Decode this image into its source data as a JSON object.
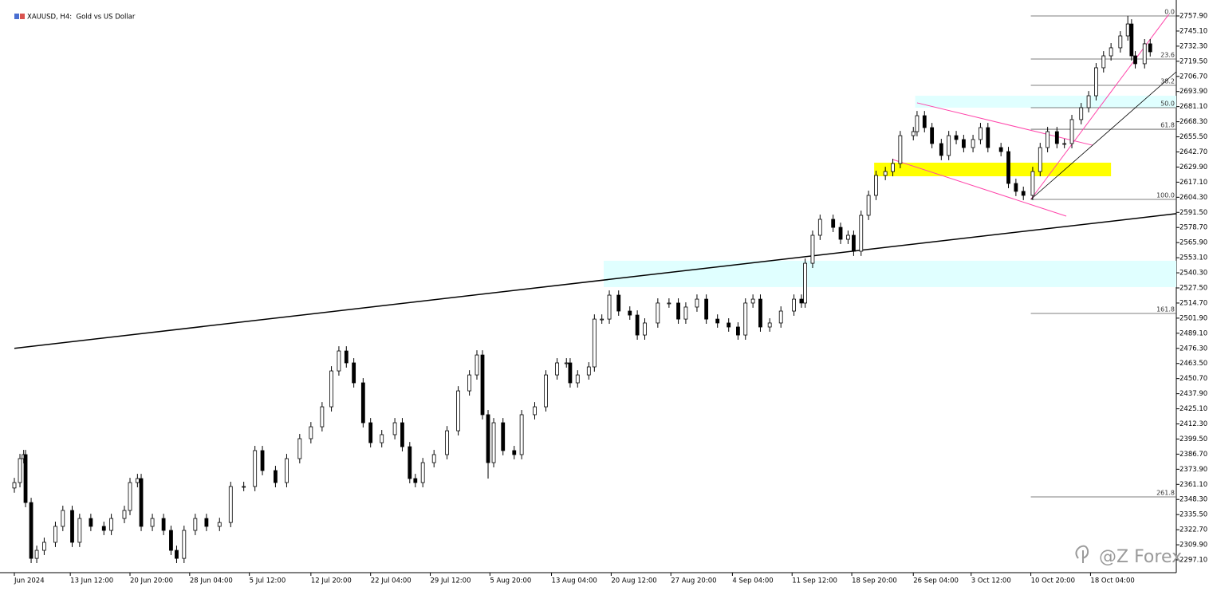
{
  "chart_data": {
    "type": "candlestick",
    "title": "XAUUSD, H4:  Gold vs US Dollar",
    "watermark": "@Z Forex",
    "up_color": "#ffffff",
    "down_color": "#000000",
    "outline_color": "#000000",
    "grid": false,
    "xlim": [
      0,
      623
    ],
    "ylim": [
      2286.3,
      2763.3
    ],
    "xticks": [
      {
        "value": 0,
        "label": "Jun 2024"
      },
      {
        "value": 30,
        "label": "13 Jun 12:00"
      },
      {
        "value": 62,
        "label": "20 Jun 20:00"
      },
      {
        "value": 94,
        "label": "28 Jun 04:00"
      },
      {
        "value": 126,
        "label": "5 Jul 12:00"
      },
      {
        "value": 159,
        "label": "12 Jul 20:00"
      },
      {
        "value": 191,
        "label": "22 Jul 04:00"
      },
      {
        "value": 223,
        "label": "29 Jul 12:00"
      },
      {
        "value": 255,
        "label": "5 Aug 20:00"
      },
      {
        "value": 288,
        "label": "13 Aug 04:00"
      },
      {
        "value": 320,
        "label": "20 Aug 12:00"
      },
      {
        "value": 352,
        "label": "27 Aug 20:00"
      },
      {
        "value": 385,
        "label": "4 Sep 04:00"
      },
      {
        "value": 417,
        "label": "11 Sep 12:00"
      },
      {
        "value": 449,
        "label": "18 Sep 20:00"
      },
      {
        "value": 482,
        "label": "26 Sep 04:00"
      },
      {
        "value": 513,
        "label": "3 Oct 12:00"
      },
      {
        "value": 545,
        "label": "10 Oct 20:00"
      },
      {
        "value": 577,
        "label": "18 Oct 04:00"
      }
    ],
    "yticks": [
      {
        "value": 2757.9,
        "label": "2757.90"
      },
      {
        "value": 2745.1,
        "label": "2745.10"
      },
      {
        "value": 2732.3,
        "label": "2732.30"
      },
      {
        "value": 2719.5,
        "label": "2719.50"
      },
      {
        "value": 2706.7,
        "label": "2706.70"
      },
      {
        "value": 2693.9,
        "label": "2693.90"
      },
      {
        "value": 2681.1,
        "label": "2681.10"
      },
      {
        "value": 2668.3,
        "label": "2668.30"
      },
      {
        "value": 2655.5,
        "label": "2655.50"
      },
      {
        "value": 2642.7,
        "label": "2642.70"
      },
      {
        "value": 2629.9,
        "label": "2629.90"
      },
      {
        "value": 2617.1,
        "label": "2617.10"
      },
      {
        "value": 2604.3,
        "label": "2604.30"
      },
      {
        "value": 2591.5,
        "label": "2591.50"
      },
      {
        "value": 2578.7,
        "label": "2578.70"
      },
      {
        "value": 2565.9,
        "label": "2565.90"
      },
      {
        "value": 2553.1,
        "label": "2553.10"
      },
      {
        "value": 2540.3,
        "label": "2540.30"
      },
      {
        "value": 2527.5,
        "label": "2527.50"
      },
      {
        "value": 2514.7,
        "label": "2514.70"
      },
      {
        "value": 2501.9,
        "label": "2501.90"
      },
      {
        "value": 2489.1,
        "label": "2489.10"
      },
      {
        "value": 2476.3,
        "label": "2476.30"
      },
      {
        "value": 2463.5,
        "label": "2463.50"
      },
      {
        "value": 2450.7,
        "label": "2450.70"
      },
      {
        "value": 2437.9,
        "label": "2437.90"
      },
      {
        "value": 2425.1,
        "label": "2425.10"
      },
      {
        "value": 2412.3,
        "label": "2412.30"
      },
      {
        "value": 2399.5,
        "label": "2399.50"
      },
      {
        "value": 2386.7,
        "label": "2386.70"
      },
      {
        "value": 2373.9,
        "label": "2373.90"
      },
      {
        "value": 2361.1,
        "label": "2361.10"
      },
      {
        "value": 2348.3,
        "label": "2348.30"
      },
      {
        "value": 2335.5,
        "label": "2335.50"
      },
      {
        "value": 2322.7,
        "label": "2322.70"
      },
      {
        "value": 2309.9,
        "label": "2309.90"
      },
      {
        "value": 2297.1,
        "label": "2297.10"
      }
    ],
    "x": [
      0,
      3,
      5,
      6,
      9,
      12,
      16,
      22,
      26,
      31,
      35,
      41,
      48,
      52,
      59,
      62,
      66,
      68,
      74,
      80,
      84,
      87,
      91,
      97,
      103,
      110,
      116,
      123,
      129,
      133,
      140,
      146,
      153,
      159,
      165,
      170,
      174,
      178,
      182,
      187,
      191,
      197,
      204,
      208,
      212,
      215,
      219,
      225,
      232,
      238,
      244,
      248,
      251,
      254,
      257,
      262,
      268,
      272,
      279,
      285,
      291,
      296,
      298,
      302,
      308,
      311,
      315,
      319,
      324,
      330,
      334,
      338,
      345,
      351,
      356,
      360,
      366,
      371,
      377,
      383,
      388,
      392,
      396,
      400,
      405,
      411,
      418,
      422,
      424,
      428,
      432,
      439,
      443,
      447,
      450,
      454,
      458,
      462,
      467,
      471,
      475,
      482,
      484,
      488,
      492,
      497,
      501,
      505,
      509,
      514,
      518,
      522,
      529,
      533,
      537,
      541,
      546,
      550,
      554,
      559,
      563,
      567,
      572,
      576,
      580,
      584,
      588,
      593,
      597,
      599,
      601,
      606,
      609
    ],
    "open": [
      2358.0,
      2362.6,
      2382.9,
      2386.3,
      2345.7,
      2298.4,
      2305.2,
      2312.0,
      2325.5,
      2339.0,
      2312.0,
      2332.2,
      2325.5,
      2322.1,
      2332.2,
      2339.0,
      2362.6,
      2366.0,
      2325.5,
      2332.2,
      2322.1,
      2305.2,
      2298.4,
      2322.1,
      2332.2,
      2325.5,
      2328.8,
      2359.3,
      2359.3,
      2389.7,
      2372.8,
      2362.6,
      2382.9,
      2399.8,
      2409.9,
      2426.8,
      2457.2,
      2474.1,
      2464.0,
      2447.1,
      2413.3,
      2396.4,
      2403.2,
      2413.3,
      2393.0,
      2366.0,
      2362.6,
      2379.5,
      2386.3,
      2406.5,
      2440.3,
      2453.8,
      2470.7,
      2420.1,
      2379.5,
      2413.3,
      2389.7,
      2386.3,
      2420.1,
      2426.8,
      2453.8,
      2464.0,
      2464.0,
      2447.1,
      2453.8,
      2460.6,
      2501.1,
      2501.1,
      2521.4,
      2507.9,
      2504.5,
      2487.6,
      2497.8,
      2514.7,
      2514.7,
      2501.1,
      2511.3,
      2518.0,
      2501.1,
      2497.8,
      2494.4,
      2487.6,
      2514.7,
      2518.0,
      2494.4,
      2497.8,
      2507.9,
      2518.0,
      2514.7,
      2548.4,
      2572.1,
      2585.6,
      2578.8,
      2568.7,
      2572.1,
      2558.6,
      2589.0,
      2605.9,
      2622.8,
      2626.1,
      2632.9,
      2656.5,
      2659.9,
      2673.4,
      2663.3,
      2649.8,
      2639.7,
      2656.5,
      2653.2,
      2646.4,
      2653.2,
      2663.3,
      2646.4,
      2643.0,
      2616.0,
      2609.3,
      2605.9,
      2626.1,
      2646.4,
      2659.9,
      2649.8,
      2649.8,
      2670.1,
      2680.2,
      2690.3,
      2714.0,
      2724.1,
      2730.9,
      2741.0,
      2751.1,
      2724.1,
      2717.4,
      2734.3
    ],
    "high": [
      2366.6,
      2386.9,
      2390.3,
      2390.3,
      2349.7,
      2309.2,
      2316.0,
      2329.5,
      2343.0,
      2343.0,
      2336.2,
      2336.2,
      2329.5,
      2336.2,
      2343.0,
      2366.6,
      2370.0,
      2370.0,
      2336.2,
      2336.2,
      2326.1,
      2309.2,
      2326.1,
      2336.2,
      2336.2,
      2332.8,
      2363.3,
      2363.3,
      2393.7,
      2393.7,
      2376.8,
      2386.9,
      2403.8,
      2413.9,
      2430.8,
      2461.2,
      2478.1,
      2478.1,
      2468.0,
      2451.1,
      2417.3,
      2407.2,
      2417.3,
      2417.3,
      2397.0,
      2370.0,
      2383.5,
      2390.3,
      2410.5,
      2444.3,
      2457.8,
      2474.7,
      2474.7,
      2424.1,
      2417.3,
      2417.3,
      2393.7,
      2424.1,
      2430.8,
      2457.8,
      2468.0,
      2468.0,
      2468.0,
      2457.8,
      2464.6,
      2505.1,
      2505.1,
      2525.4,
      2525.4,
      2511.9,
      2508.5,
      2501.8,
      2518.7,
      2518.7,
      2518.7,
      2515.3,
      2522.0,
      2522.0,
      2505.1,
      2501.8,
      2498.4,
      2518.7,
      2522.0,
      2522.0,
      2501.8,
      2511.9,
      2522.0,
      2522.0,
      2552.4,
      2576.1,
      2589.6,
      2589.6,
      2582.8,
      2576.1,
      2576.1,
      2593.0,
      2609.9,
      2626.8,
      2630.1,
      2636.9,
      2660.5,
      2663.9,
      2677.4,
      2677.4,
      2667.3,
      2653.8,
      2660.5,
      2660.5,
      2657.2,
      2657.2,
      2667.3,
      2667.3,
      2650.4,
      2647.0,
      2620.0,
      2613.3,
      2630.1,
      2650.4,
      2663.9,
      2663.9,
      2653.8,
      2674.1,
      2684.2,
      2694.3,
      2718.0,
      2728.1,
      2734.9,
      2745.0,
      2758.0,
      2755.1,
      2728.1,
      2738.3,
      2738.3
    ],
    "low": [
      2354.0,
      2358.6,
      2378.9,
      2341.7,
      2294.4,
      2294.4,
      2301.2,
      2308.0,
      2321.5,
      2308.0,
      2308.0,
      2321.5,
      2318.1,
      2318.1,
      2328.2,
      2335.0,
      2358.6,
      2321.5,
      2321.5,
      2318.1,
      2301.2,
      2294.4,
      2294.4,
      2318.1,
      2321.5,
      2321.5,
      2324.8,
      2355.3,
      2355.3,
      2368.8,
      2358.6,
      2358.6,
      2378.9,
      2395.8,
      2405.9,
      2422.8,
      2453.2,
      2460.0,
      2443.1,
      2409.3,
      2392.4,
      2392.4,
      2399.2,
      2389.0,
      2362.0,
      2358.6,
      2358.6,
      2375.5,
      2382.3,
      2402.5,
      2436.3,
      2449.8,
      2416.1,
      2366.0,
      2375.5,
      2385.7,
      2382.3,
      2382.3,
      2416.1,
      2422.8,
      2449.8,
      2460.0,
      2443.1,
      2443.1,
      2449.8,
      2456.6,
      2497.1,
      2497.1,
      2503.9,
      2500.5,
      2483.6,
      2483.6,
      2493.8,
      2510.7,
      2497.1,
      2497.1,
      2507.3,
      2497.1,
      2493.8,
      2490.4,
      2483.6,
      2483.6,
      2510.7,
      2490.4,
      2490.4,
      2493.8,
      2503.9,
      2510.7,
      2510.7,
      2544.4,
      2568.1,
      2574.8,
      2564.7,
      2564.7,
      2554.6,
      2554.6,
      2585.0,
      2601.9,
      2618.8,
      2622.1,
      2628.9,
      2652.5,
      2655.9,
      2659.3,
      2645.8,
      2635.7,
      2635.7,
      2649.2,
      2642.4,
      2642.4,
      2649.2,
      2642.4,
      2639.0,
      2612.0,
      2605.3,
      2601.9,
      2601.9,
      2622.1,
      2642.4,
      2645.8,
      2645.8,
      2645.8,
      2666.1,
      2676.2,
      2686.3,
      2710.0,
      2720.1,
      2726.9,
      2737.0,
      2720.1,
      2713.4,
      2713.4,
      2723.5
    ],
    "close": [
      2362.6,
      2382.9,
      2386.3,
      2345.7,
      2298.4,
      2305.2,
      2312.0,
      2325.5,
      2339.0,
      2312.0,
      2332.2,
      2325.5,
      2322.1,
      2332.2,
      2339.0,
      2362.6,
      2366.0,
      2325.5,
      2332.2,
      2322.1,
      2305.2,
      2298.4,
      2322.1,
      2332.2,
      2325.5,
      2328.8,
      2359.3,
      2359.3,
      2389.7,
      2372.8,
      2362.6,
      2382.9,
      2399.8,
      2409.9,
      2426.8,
      2457.2,
      2474.1,
      2464.0,
      2447.1,
      2413.3,
      2396.4,
      2403.2,
      2413.3,
      2393.0,
      2366.0,
      2362.6,
      2379.5,
      2386.3,
      2406.5,
      2440.3,
      2453.8,
      2470.7,
      2420.1,
      2379.5,
      2413.3,
      2389.7,
      2386.3,
      2420.1,
      2426.8,
      2453.8,
      2464.0,
      2464.0,
      2447.1,
      2453.8,
      2460.6,
      2501.1,
      2501.1,
      2521.4,
      2507.9,
      2504.5,
      2487.6,
      2497.8,
      2514.7,
      2514.7,
      2501.1,
      2511.3,
      2518.0,
      2501.1,
      2497.8,
      2494.4,
      2487.6,
      2514.7,
      2518.0,
      2494.4,
      2497.8,
      2507.9,
      2518.0,
      2514.7,
      2548.4,
      2572.1,
      2585.6,
      2578.8,
      2568.7,
      2572.1,
      2558.6,
      2589.0,
      2605.9,
      2622.8,
      2626.1,
      2632.9,
      2656.5,
      2659.9,
      2673.4,
      2663.3,
      2649.8,
      2639.7,
      2656.5,
      2653.2,
      2646.4,
      2653.2,
      2663.3,
      2646.4,
      2643.0,
      2616.0,
      2609.3,
      2605.9,
      2626.1,
      2646.4,
      2659.9,
      2649.8,
      2649.8,
      2670.1,
      2680.2,
      2690.3,
      2714.0,
      2724.1,
      2730.9,
      2741.0,
      2751.1,
      2724.1,
      2717.4,
      2734.3,
      2727.5
    ],
    "zones": [
      {
        "x": [
          483,
          623
        ],
        "y": [
          2680.2,
          2690.3
        ],
        "color": "#e0ffff"
      },
      {
        "x": [
          316,
          623
        ],
        "y": [
          2528.2,
          2550.5
        ],
        "color": "#e0ffff"
      },
      {
        "x": [
          461,
          588
        ],
        "y": [
          2622.1,
          2633.6
        ],
        "color": "#ffff00"
      }
    ],
    "lines": [
      {
        "x": [
          0,
          623
        ],
        "y": [
          2476.3,
          2590.4
        ],
        "color": "#000000",
        "width": 1.5
      },
      {
        "x": [
          484,
          578
        ],
        "y": [
          2684.3,
          2648.4
        ],
        "color": "#ff44aa",
        "width": 1
      },
      {
        "x": [
          471,
          564
        ],
        "y": [
          2636.3,
          2588.3
        ],
        "color": "#ff44aa",
        "width": 1
      },
      {
        "x": [
          545,
          619
        ],
        "y": [
          2602.5,
          2759.3
        ],
        "color": "#ff44aa",
        "width": 1
      },
      {
        "x": [
          545,
          623
        ],
        "y": [
          2602.5,
          2710.6
        ],
        "color": "#000000",
        "width": 0.8
      }
    ],
    "fibonacci": {
      "x": [
        545,
        623
      ],
      "color": "#555555",
      "levels": [
        {
          "label": "0.0",
          "value": 2757.9
        },
        {
          "label": "23.6",
          "value": 2721.4
        },
        {
          "label": "38.2",
          "value": 2699.1
        },
        {
          "label": "50.0",
          "value": 2680.2
        },
        {
          "label": "61.8",
          "value": 2661.9
        },
        {
          "label": "100.0",
          "value": 2602.5
        },
        {
          "label": "161.8",
          "value": 2505.9
        },
        {
          "label": "261.8",
          "value": 2350.5
        }
      ]
    }
  }
}
